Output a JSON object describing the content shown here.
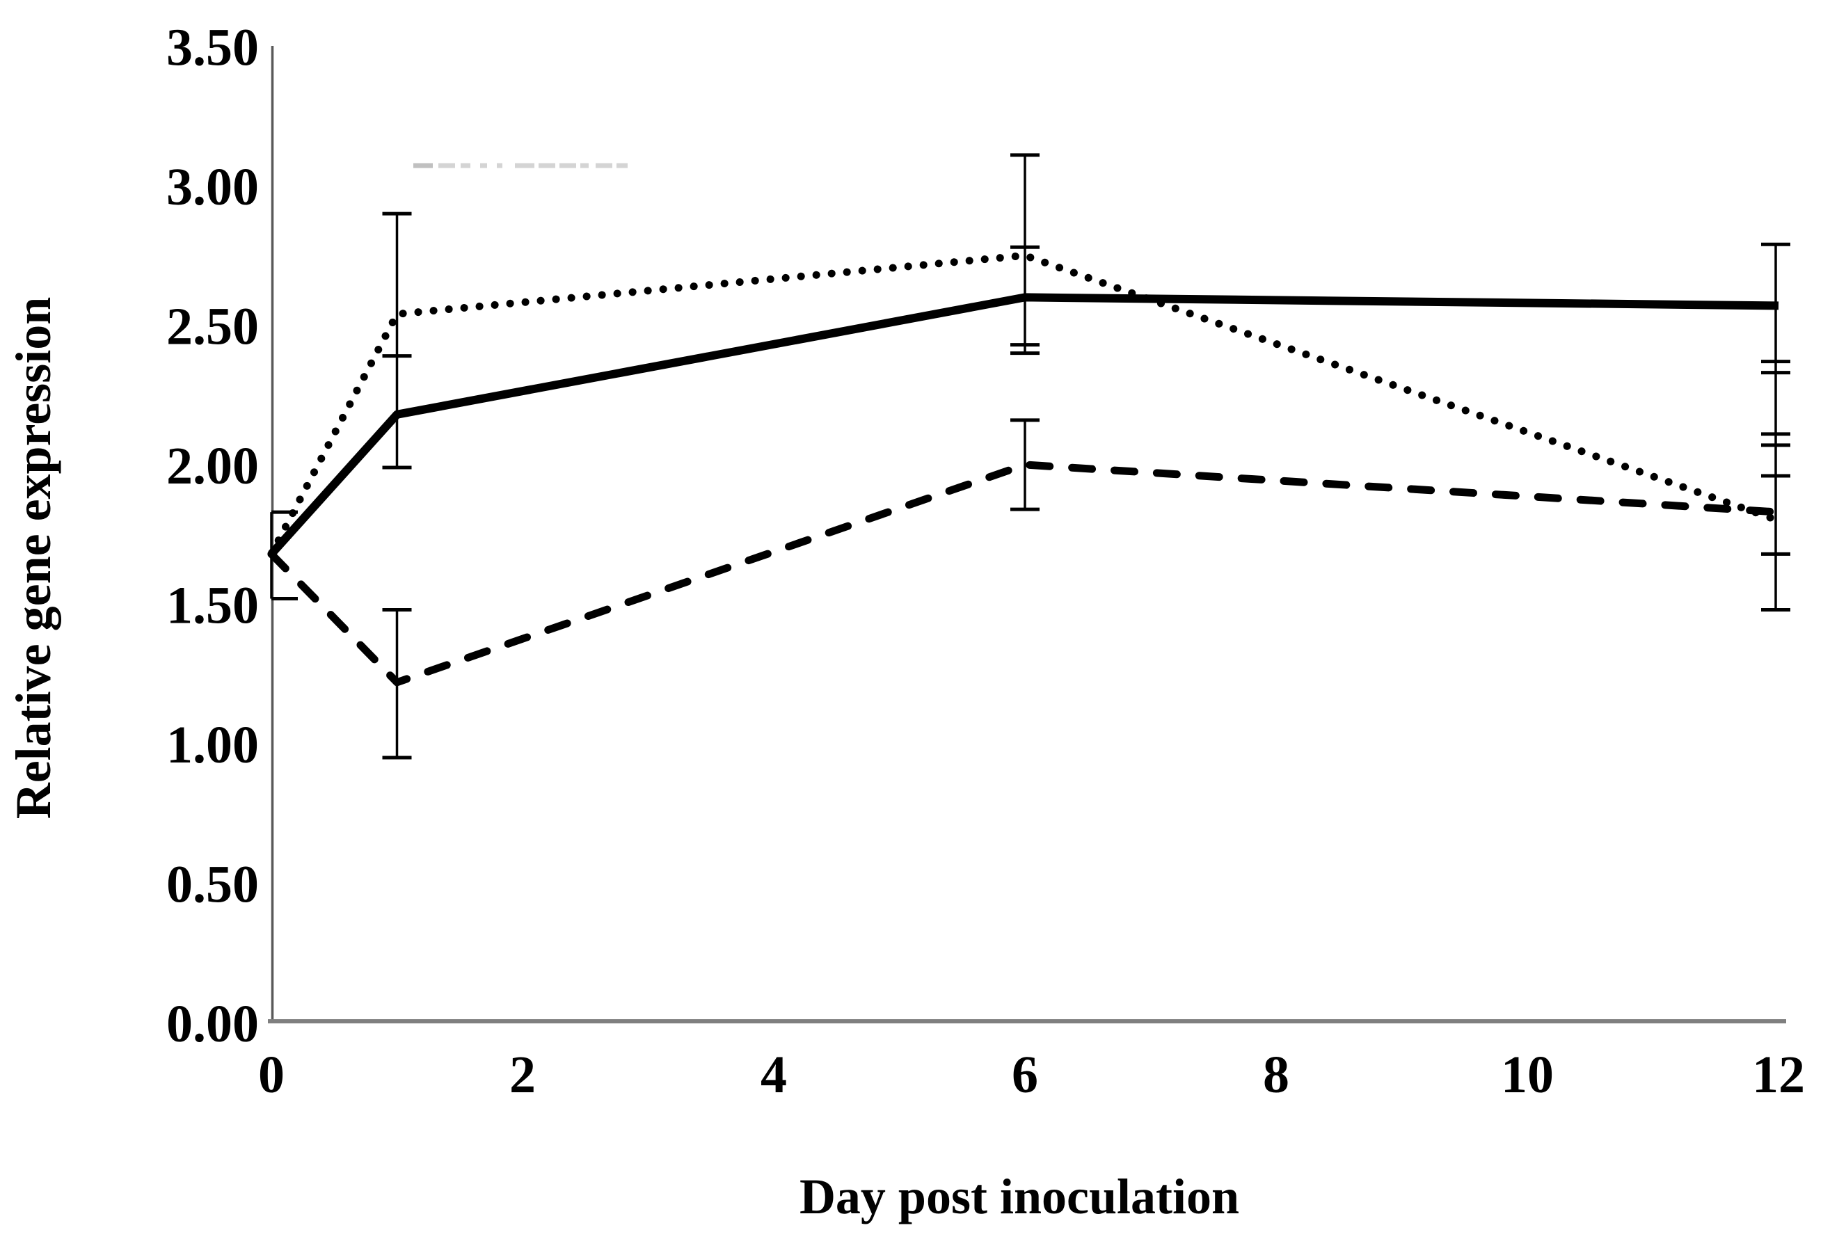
{
  "colors": {
    "series": "#000000",
    "x_axis_line": "#7f7f7f",
    "y_axis_line": "#595959",
    "background": "#ffffff",
    "erased_legend_artifact": "#d4d4d4"
  },
  "chart_data": {
    "type": "line",
    "title": "",
    "xlabel": "Day post inoculation",
    "ylabel": "Relative gene expression",
    "x": [
      0,
      1,
      6,
      12
    ],
    "series": [
      {
        "name": "solid-line-series",
        "style": "solid",
        "values": [
          1.68,
          2.18,
          2.6,
          2.57
        ]
      },
      {
        "name": "dotted-line-series",
        "style": "dotted",
        "values": [
          1.68,
          2.54,
          2.75,
          1.8
        ]
      },
      {
        "name": "dashed-line-series",
        "style": "dashed",
        "values": [
          1.68,
          1.22,
          2.0,
          1.83
        ]
      }
    ],
    "error_bars": [
      {
        "x": 0,
        "from": 1.52,
        "to": 1.83,
        "caps": [
          1.52,
          1.83
        ],
        "note": "caps extend right of y-axis"
      },
      {
        "x": 1,
        "from": 1.99,
        "to": 2.9,
        "caps": [
          1.99,
          2.39,
          2.9
        ],
        "note": "overlapping solid+dotted bars"
      },
      {
        "x": 1,
        "from": 0.95,
        "to": 1.48,
        "caps": [
          0.95,
          1.48
        ],
        "note": "dashed series"
      },
      {
        "x": 6,
        "from": 2.4,
        "to": 3.11,
        "caps": [
          2.4,
          2.43,
          2.78,
          3.11
        ],
        "note": "overlapping solid+dotted bars"
      },
      {
        "x": 6,
        "from": 1.84,
        "to": 2.16,
        "caps": [
          1.84,
          2.16
        ],
        "note": "dashed series"
      },
      {
        "x": 12,
        "from": 1.48,
        "to": 2.79,
        "caps": [
          1.48,
          1.68,
          1.96,
          2.07,
          2.11,
          2.33,
          2.37,
          2.79
        ],
        "note": "all three series overlapping"
      }
    ],
    "x_ticks": [
      {
        "value": 0,
        "label": "0"
      },
      {
        "value": 2,
        "label": "2"
      },
      {
        "value": 4,
        "label": "4"
      },
      {
        "value": 6,
        "label": "6"
      },
      {
        "value": 8,
        "label": "8"
      },
      {
        "value": 10,
        "label": "10"
      },
      {
        "value": 12,
        "label": "12"
      }
    ],
    "y_ticks": [
      {
        "value": 0.0,
        "label": "0.00"
      },
      {
        "value": 0.5,
        "label": "0.50"
      },
      {
        "value": 1.0,
        "label": "1.00"
      },
      {
        "value": 1.5,
        "label": "1.50"
      },
      {
        "value": 2.0,
        "label": "2.00"
      },
      {
        "value": 2.5,
        "label": "2.50"
      },
      {
        "value": 3.0,
        "label": "3.00"
      },
      {
        "value": 3.5,
        "label": "3.50"
      }
    ],
    "xlim": [
      0,
      12
    ],
    "ylim": [
      0,
      3.5
    ],
    "grid": false,
    "legend_position": "none",
    "artifact": {
      "description": "faint remnant of an erased legend/text near top of plot",
      "y": 238,
      "segments": [
        [
          594,
          622
        ],
        [
          630,
          654
        ],
        [
          662,
          676
        ],
        [
          690,
          700
        ],
        [
          714,
          722
        ],
        [
          740,
          768
        ],
        [
          774,
          798
        ],
        [
          804,
          828
        ],
        [
          834,
          846
        ],
        [
          856,
          880
        ],
        [
          886,
          902
        ]
      ]
    }
  }
}
